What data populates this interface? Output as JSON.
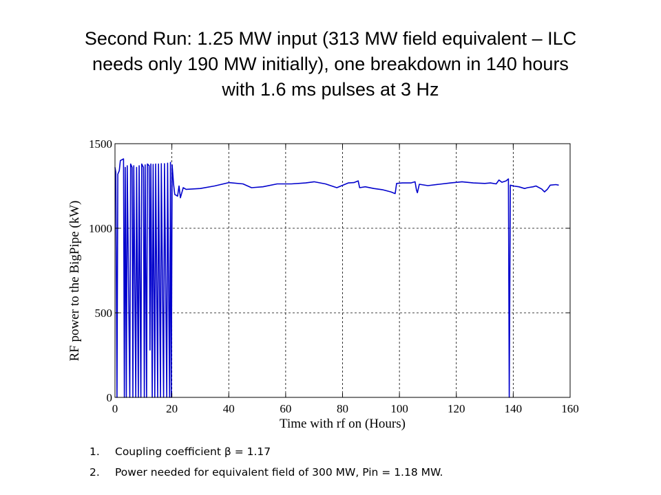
{
  "slide": {
    "title_lines": [
      "Second Run: 1.25 MW input (313 MW field equivalent – ILC",
      "needs only 190 MW initially), one breakdown in 140 hours",
      "with 1.6 ms pulses at 3 Hz"
    ],
    "notes": [
      {
        "num": "1.",
        "text": "Coupling coefficient β = 1.17"
      },
      {
        "num": "2.",
        "text": "Power needed for equivalent field of 300 MW, Pin = 1.18 MW."
      }
    ]
  },
  "chart_data": {
    "type": "line",
    "title": "",
    "xlabel": "Time with rf on (Hours)",
    "ylabel": "RF power  to the BigPipe (kW)",
    "xlim": [
      0,
      160
    ],
    "ylim": [
      0,
      1500
    ],
    "xticks": [
      0,
      20,
      40,
      60,
      80,
      100,
      120,
      140,
      160
    ],
    "yticks": [
      0,
      500,
      1000,
      1500
    ],
    "grid": true,
    "grid_style": "dashed",
    "line_color": "#0000cc",
    "series": [
      {
        "values": [
          [
            0,
            1360
          ],
          [
            0.3,
            1330
          ],
          [
            0.7,
            0
          ],
          [
            1.0,
            1320
          ],
          [
            1.5,
            1340
          ],
          [
            1.9,
            1400
          ],
          [
            3,
            1410
          ],
          [
            3.3,
            0
          ],
          [
            3.6,
            1360
          ],
          [
            4.0,
            0
          ],
          [
            4.3,
            1370
          ],
          [
            5.2,
            0
          ],
          [
            5.5,
            1380
          ],
          [
            6.0,
            1360
          ],
          [
            6.3,
            0
          ],
          [
            6.6,
            1370
          ],
          [
            7.3,
            0
          ],
          [
            7.6,
            1360
          ],
          [
            8.2,
            0
          ],
          [
            8.5,
            1370
          ],
          [
            9.1,
            0
          ],
          [
            9.4,
            1380
          ],
          [
            10.0,
            1360
          ],
          [
            10.3,
            0
          ],
          [
            10.6,
            1375
          ],
          [
            11.1,
            0
          ],
          [
            11.4,
            1380
          ],
          [
            12.0,
            1370
          ],
          [
            12.3,
            280
          ],
          [
            12.6,
            1380
          ],
          [
            13.1,
            0
          ],
          [
            13.4,
            1378
          ],
          [
            14.0,
            0
          ],
          [
            14.3,
            1380
          ],
          [
            15.0,
            0
          ],
          [
            15.3,
            1380
          ],
          [
            16.0,
            0
          ],
          [
            16.3,
            1382
          ],
          [
            17.1,
            0
          ],
          [
            17.4,
            1382
          ],
          [
            18.2,
            0
          ],
          [
            18.5,
            1385
          ],
          [
            19.2,
            0
          ],
          [
            19.5,
            1390
          ],
          [
            19.8,
            0
          ],
          [
            20.1,
            1375
          ],
          [
            20.6,
            1260
          ],
          [
            21,
            1200
          ],
          [
            22,
            1190
          ],
          [
            22.5,
            1250
          ],
          [
            23,
            1180
          ],
          [
            24,
            1240
          ],
          [
            25,
            1230
          ],
          [
            30,
            1235
          ],
          [
            35,
            1250
          ],
          [
            40,
            1270
          ],
          [
            45,
            1262
          ],
          [
            48,
            1240
          ],
          [
            52,
            1245
          ],
          [
            57,
            1262
          ],
          [
            62,
            1262
          ],
          [
            67,
            1268
          ],
          [
            70,
            1275
          ],
          [
            74,
            1262
          ],
          [
            78,
            1240
          ],
          [
            82,
            1268
          ],
          [
            84,
            1270
          ],
          [
            85.5,
            1280
          ],
          [
            86,
            1240
          ],
          [
            88,
            1245
          ],
          [
            91,
            1235
          ],
          [
            94,
            1228
          ],
          [
            97,
            1215
          ],
          [
            98.5,
            1205
          ],
          [
            99,
            1265
          ],
          [
            101,
            1268
          ],
          [
            104,
            1268
          ],
          [
            105.5,
            1275
          ],
          [
            106,
            1225
          ],
          [
            106.3,
            1210
          ],
          [
            107,
            1260
          ],
          [
            110,
            1252
          ],
          [
            114,
            1260
          ],
          [
            118,
            1268
          ],
          [
            122,
            1275
          ],
          [
            126,
            1268
          ],
          [
            130,
            1265
          ],
          [
            132,
            1268
          ],
          [
            134,
            1262
          ],
          [
            135,
            1285
          ],
          [
            136,
            1272
          ],
          [
            137.5,
            1280
          ],
          [
            138.3,
            1292
          ],
          [
            138.6,
            0
          ],
          [
            139.0,
            1255
          ],
          [
            140,
            1250
          ],
          [
            142,
            1245
          ],
          [
            144,
            1235
          ],
          [
            145,
            1240
          ],
          [
            147,
            1245
          ],
          [
            148,
            1250
          ],
          [
            150,
            1232
          ],
          [
            151,
            1215
          ],
          [
            152,
            1230
          ],
          [
            153,
            1255
          ],
          [
            155,
            1258
          ],
          [
            156,
            1255
          ]
        ]
      }
    ]
  }
}
